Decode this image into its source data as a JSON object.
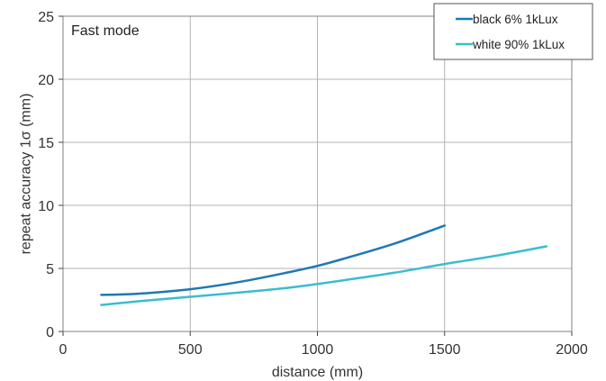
{
  "chart_data": {
    "type": "line",
    "annotation": "Fast mode",
    "xlabel": "distance (mm)",
    "ylabel": "repeat accuracy 1σ (mm)",
    "xlim": [
      0,
      2000
    ],
    "ylim": [
      0,
      25
    ],
    "xticks": [
      0,
      500,
      1000,
      1500,
      2000
    ],
    "yticks": [
      0,
      5,
      10,
      15,
      20,
      25
    ],
    "grid": true,
    "legend_position": "top-right",
    "series": [
      {
        "name": "black 6% 1kLux",
        "color": "#1f78b4",
        "x": [
          150,
          300,
          500,
          700,
          900,
          1000,
          1100,
          1300,
          1500
        ],
        "y": [
          2.9,
          3.0,
          3.35,
          3.95,
          4.75,
          5.2,
          5.75,
          6.95,
          8.4
        ]
      },
      {
        "name": "white 90% 1kLux",
        "color": "#3bbcd0",
        "x": [
          150,
          300,
          500,
          700,
          900,
          1100,
          1300,
          1500,
          1700,
          1900
        ],
        "y": [
          2.1,
          2.4,
          2.75,
          3.1,
          3.5,
          4.05,
          4.65,
          5.35,
          6.0,
          6.75
        ]
      }
    ]
  }
}
